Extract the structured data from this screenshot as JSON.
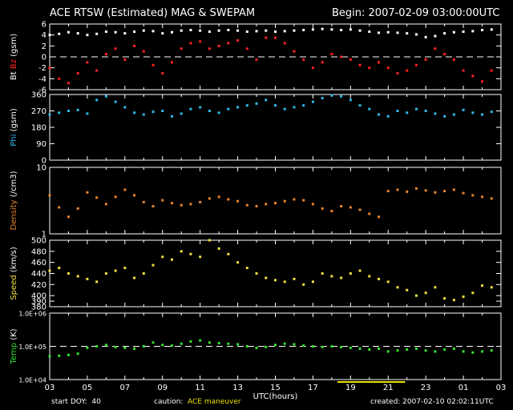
{
  "header": {
    "title": "ACE RTSW (Estimated) MAG & SWEPAM",
    "begin": "Begin: 2007-02-09 03:00:00UTC"
  },
  "footer": {
    "start_doy": "start DOY:  40",
    "caution_label": "caution:",
    "caution_value": "ACE maneuver",
    "created": "created: 2007-02-10 02:02:11UTC"
  },
  "colors": {
    "bt": "#ffffff",
    "bz": "#ff2020",
    "phi": "#30b8e8",
    "density": "#e8842c",
    "speed": "#f0e040",
    "temp": "#30e030",
    "maneuver": "#f0e000",
    "frame": "#ffffff"
  },
  "chart_data": {
    "type": "scatter",
    "x_axis": {
      "label": "UTC(hours)",
      "range_hours_since_begin": [
        0,
        24
      ],
      "tick_labels": [
        "03",
        "05",
        "07",
        "09",
        "11",
        "13",
        "15",
        "17",
        "19",
        "21",
        "23",
        "01",
        "03"
      ]
    },
    "maneuver_span_hours_since_begin": [
      15.3,
      18.9
    ],
    "panels": [
      {
        "id": "mag",
        "ylabel_parts": [
          "Bt",
          "Bz",
          "(gsm)"
        ],
        "ylim": [
          -6,
          6
        ],
        "tick_labels": [
          "6",
          "4",
          "2",
          "0",
          "-2",
          "-4",
          "-6"
        ],
        "tick_values": [
          6,
          4,
          2,
          0,
          -2,
          -4,
          -6
        ],
        "zero_line": 0,
        "series": [
          {
            "name": "Bt",
            "color": "#ffffff",
            "x": [
              0,
              0.5,
              1,
              1.5,
              2,
              2.5,
              3,
              3.5,
              4,
              4.5,
              5,
              5.5,
              6,
              6.5,
              7,
              7.5,
              8,
              8.5,
              9,
              9.5,
              10,
              10.5,
              11,
              11.5,
              12,
              12.5,
              13,
              13.5,
              14,
              14.5,
              15,
              15.5,
              16,
              16.5,
              17,
              17.5,
              18,
              18.5,
              19,
              19.5,
              20,
              20.5,
              21,
              21.5,
              22,
              22.5,
              23,
              23.5
            ],
            "y": [
              4.0,
              4.2,
              4.5,
              4.3,
              4.0,
              4.2,
              4.6,
              4.5,
              4.3,
              4.6,
              4.8,
              4.7,
              4.3,
              4.5,
              4.8,
              4.9,
              4.8,
              4.6,
              4.8,
              4.9,
              4.8,
              4.6,
              4.7,
              4.8,
              4.6,
              4.7,
              4.8,
              4.9,
              5.0,
              5.1,
              5.0,
              4.9,
              5.0,
              4.8,
              4.6,
              4.4,
              4.5,
              4.4,
              4.3,
              4.1,
              3.6,
              3.8,
              4.3,
              4.5,
              4.6,
              4.7,
              4.9,
              5.0
            ]
          },
          {
            "name": "Bz",
            "color": "#ff2020",
            "x": [
              0,
              0.5,
              1,
              1.5,
              2,
              2.5,
              3,
              3.5,
              4,
              4.5,
              5,
              5.5,
              6,
              6.5,
              7,
              7.5,
              8,
              8.5,
              9,
              9.5,
              10,
              10.5,
              11,
              11.5,
              12,
              12.5,
              13,
              13.5,
              14,
              14.5,
              15,
              15.5,
              16,
              16.5,
              17,
              17.5,
              18,
              18.5,
              19,
              19.5,
              20,
              20.5,
              21,
              21.5,
              22,
              22.5,
              23,
              23.5
            ],
            "y": [
              -2.0,
              -4.0,
              -4.8,
              -3.0,
              -1.0,
              -2.5,
              0.5,
              1.5,
              -0.5,
              2.0,
              1.0,
              -1.5,
              -3.0,
              -1.0,
              1.5,
              2.5,
              2.8,
              1.5,
              2.0,
              2.5,
              3.0,
              1.5,
              -0.5,
              3.5,
              3.5,
              2.5,
              1.0,
              -0.5,
              -2.0,
              -1.0,
              0.5,
              0.0,
              -0.5,
              -1.5,
              -2.0,
              -1.0,
              -2.0,
              -3.0,
              -2.5,
              -1.5,
              -0.5,
              1.5,
              0.5,
              -0.5,
              -2.5,
              -3.5,
              -4.5,
              -2.5
            ]
          }
        ]
      },
      {
        "id": "phi",
        "ylabel_parts": [
          "Phi",
          "(gsm)"
        ],
        "ylim": [
          0,
          360
        ],
        "tick_labels": [
          "360",
          "270",
          "180",
          "90",
          "0"
        ],
        "tick_values": [
          360,
          270,
          180,
          90,
          0
        ],
        "series": [
          {
            "name": "Phi",
            "color": "#30b8e8",
            "x": [
              0,
              0.5,
              1,
              1.5,
              2,
              2.5,
              3,
              3.5,
              4,
              4.5,
              5,
              5.5,
              6,
              6.5,
              7,
              7.5,
              8,
              8.5,
              9,
              9.5,
              10,
              10.5,
              11,
              11.5,
              12,
              12.5,
              13,
              13.5,
              14,
              14.5,
              15,
              15.5,
              16,
              16.5,
              17,
              17.5,
              18,
              18.5,
              19,
              19.5,
              20,
              20.5,
              21,
              21.5,
              22,
              22.5,
              23,
              23.5
            ],
            "y": [
              250,
              260,
              270,
              275,
              255,
              330,
              350,
              320,
              290,
              260,
              250,
              265,
              270,
              240,
              255,
              280,
              290,
              270,
              260,
              280,
              290,
              300,
              310,
              330,
              300,
              280,
              290,
              300,
              320,
              340,
              355,
              350,
              330,
              300,
              280,
              250,
              240,
              270,
              260,
              280,
              270,
              255,
              240,
              250,
              275,
              260,
              250,
              265
            ]
          }
        ]
      },
      {
        "id": "density",
        "ylabel_parts": [
          "Density",
          "(/cm3)"
        ],
        "log_scale": true,
        "ylim": [
          1,
          10
        ],
        "tick_labels": [
          "10",
          "1"
        ],
        "tick_values": [
          10,
          1
        ],
        "series": [
          {
            "name": "Density",
            "color": "#e8842c",
            "x": [
              0,
              0.5,
              1,
              1.5,
              2,
              2.5,
              3,
              3.5,
              4,
              4.5,
              5,
              5.5,
              6,
              6.5,
              7,
              7.5,
              8,
              8.5,
              9,
              9.5,
              10,
              10.5,
              11,
              11.5,
              12,
              12.5,
              13,
              13.5,
              14,
              14.5,
              15,
              15.5,
              16,
              16.5,
              17,
              17.5,
              18,
              18.5,
              19,
              19.5,
              20,
              20.5,
              21,
              21.5,
              22,
              22.5,
              23,
              23.5
            ],
            "y": [
              3.8,
              2.5,
              1.8,
              2.4,
              4.2,
              3.5,
              2.8,
              3.6,
              4.6,
              3.8,
              3.0,
              2.6,
              3.2,
              2.9,
              2.7,
              2.8,
              3.0,
              3.4,
              3.6,
              3.3,
              3.1,
              2.7,
              2.6,
              2.8,
              2.9,
              3.1,
              3.3,
              3.2,
              2.8,
              2.4,
              2.2,
              2.6,
              2.5,
              2.3,
              2.0,
              1.8,
              4.4,
              4.6,
              4.3,
              4.8,
              4.5,
              4.2,
              4.4,
              4.6,
              4.1,
              3.8,
              3.6,
              3.4
            ]
          }
        ]
      },
      {
        "id": "speed",
        "ylabel_parts": [
          "Speed",
          "(km/s)"
        ],
        "ylim": [
          380,
          500
        ],
        "tick_labels": [
          "500",
          "480",
          "460",
          "440",
          "420",
          "400",
          "390",
          "380"
        ],
        "tick_values": [
          500,
          480,
          460,
          440,
          420,
          400,
          390,
          380
        ],
        "series": [
          {
            "name": "Speed",
            "color": "#f0e040",
            "x": [
              0,
              0.5,
              1,
              1.5,
              2,
              2.5,
              3,
              3.5,
              4,
              4.5,
              5,
              5.5,
              6,
              6.5,
              7,
              7.5,
              8,
              8.5,
              9,
              9.5,
              10,
              10.5,
              11,
              11.5,
              12,
              12.5,
              13,
              13.5,
              14,
              14.5,
              15,
              15.5,
              16,
              16.5,
              17,
              17.5,
              18,
              18.5,
              19,
              19.5,
              20,
              20.5,
              21,
              21.5,
              22,
              22.5,
              23,
              23.5
            ],
            "y": [
              445,
              450,
              440,
              435,
              430,
              425,
              440,
              445,
              450,
              432,
              440,
              455,
              470,
              465,
              480,
              475,
              470,
              500,
              485,
              475,
              460,
              450,
              440,
              432,
              428,
              425,
              430,
              420,
              425,
              440,
              435,
              432,
              440,
              445,
              435,
              430,
              425,
              415,
              410,
              400,
              405,
              415,
              395,
              392,
              398,
              405,
              418,
              415
            ]
          }
        ]
      },
      {
        "id": "temp",
        "ylabel_parts": [
          "Temp",
          "(K)"
        ],
        "log_scale": true,
        "ylim": [
          10000,
          1000000
        ],
        "tick_labels": [
          "1.0E+06",
          "1.0E+05",
          "1.0E+04"
        ],
        "tick_values": [
          1000000,
          100000,
          10000
        ],
        "dashed_reference": 100000,
        "series": [
          {
            "name": "Temp",
            "color": "#30e030",
            "x": [
              0,
              0.5,
              1,
              1.5,
              2,
              2.5,
              3,
              3.5,
              4,
              4.5,
              5,
              5.5,
              6,
              6.5,
              7,
              7.5,
              8,
              8.5,
              9,
              9.5,
              10,
              10.5,
              11,
              11.5,
              12,
              12.5,
              13,
              13.5,
              14,
              14.5,
              15,
              15.5,
              16,
              16.5,
              17,
              17.5,
              18,
              18.5,
              19,
              19.5,
              20,
              20.5,
              21,
              21.5,
              22,
              22.5,
              23,
              23.5
            ],
            "y": [
              50000,
              52000,
              55000,
              60000,
              90000,
              100000,
              110000,
              95000,
              90000,
              85000,
              100000,
              130000,
              110000,
              105000,
              120000,
              140000,
              150000,
              130000,
              125000,
              120000,
              115000,
              100000,
              90000,
              95000,
              110000,
              120000,
              115000,
              105000,
              100000,
              95000,
              100000,
              95000,
              90000,
              85000,
              80000,
              85000,
              70000,
              75000,
              80000,
              85000,
              75000,
              70000,
              80000,
              85000,
              70000,
              65000,
              70000,
              75000
            ]
          }
        ]
      }
    ]
  }
}
